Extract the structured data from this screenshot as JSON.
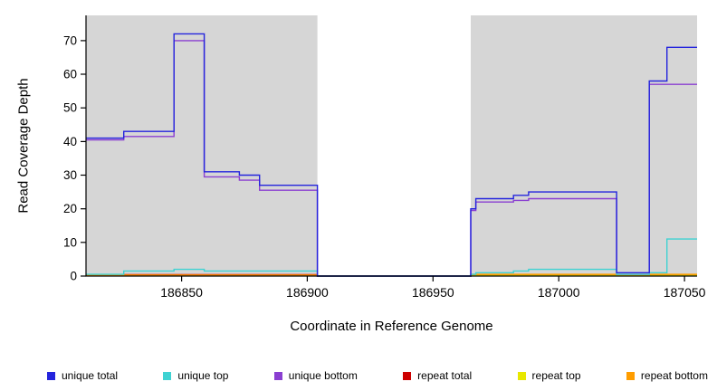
{
  "chart_data": {
    "type": "line",
    "title": "",
    "xlabel": "Coordinate in Reference Genome",
    "ylabel": "Read Coverage Depth",
    "x_ticks": [
      186850,
      186900,
      186950,
      187000,
      187050
    ],
    "y_ticks": [
      0,
      10,
      20,
      30,
      40,
      50,
      60,
      70
    ],
    "xlim": [
      186812,
      187055
    ],
    "ylim": [
      0,
      77.5
    ],
    "step_mode": "after",
    "grid": false,
    "panel_background": "#d6d6d6",
    "shaded_regions": [
      [
        186812,
        186904
      ],
      [
        186965,
        187055
      ]
    ],
    "series": [
      {
        "name": "repeat total",
        "color": "#cd0000",
        "points": [
          [
            186812,
            0.4
          ],
          [
            186904,
            0
          ],
          [
            186965,
            0.4
          ]
        ]
      },
      {
        "name": "repeat top",
        "color": "#e8e800",
        "points": [
          [
            186812,
            0.2
          ],
          [
            186904,
            0
          ],
          [
            186965,
            0.2
          ]
        ]
      },
      {
        "name": "repeat bottom",
        "color": "#ff9d00",
        "points": [
          [
            186812,
            0.3
          ],
          [
            186904,
            0
          ],
          [
            186965,
            0.5
          ]
        ]
      },
      {
        "name": "unique bottom",
        "color": "#8a3fd1",
        "points": [
          [
            186812,
            40.5
          ],
          [
            186827,
            41.5
          ],
          [
            186847,
            70
          ],
          [
            186859,
            29.5
          ],
          [
            186873,
            28.5
          ],
          [
            186881,
            25.5
          ],
          [
            186904,
            0
          ],
          [
            186965,
            19.5
          ],
          [
            186967,
            22
          ],
          [
            186982,
            22.5
          ],
          [
            186988,
            23
          ],
          [
            187023,
            0.5
          ],
          [
            187036,
            57
          ]
        ]
      },
      {
        "name": "unique top",
        "color": "#3fd2d2",
        "points": [
          [
            186812,
            0.5
          ],
          [
            186827,
            1.5
          ],
          [
            186847,
            2
          ],
          [
            186859,
            1.5
          ],
          [
            186881,
            1.5
          ],
          [
            186904,
            0
          ],
          [
            186965,
            0.5
          ],
          [
            186967,
            1
          ],
          [
            186982,
            1.5
          ],
          [
            186988,
            2
          ],
          [
            187023,
            0.5
          ],
          [
            187036,
            1
          ],
          [
            187043,
            11
          ]
        ]
      },
      {
        "name": "unique total",
        "color": "#2424dd",
        "points": [
          [
            186812,
            41
          ],
          [
            186827,
            43
          ],
          [
            186847,
            72
          ],
          [
            186859,
            31
          ],
          [
            186873,
            30
          ],
          [
            186881,
            27
          ],
          [
            186904,
            0
          ],
          [
            186965,
            20
          ],
          [
            186967,
            23
          ],
          [
            186982,
            24
          ],
          [
            186988,
            25
          ],
          [
            187023,
            1
          ],
          [
            187036,
            58
          ],
          [
            187043,
            68
          ]
        ]
      }
    ],
    "legend": {
      "position": "bottom",
      "items": [
        {
          "label": "unique total",
          "color": "#2424dd"
        },
        {
          "label": "unique top",
          "color": "#3fd2d2"
        },
        {
          "label": "unique bottom",
          "color": "#8a3fd1"
        },
        {
          "label": "repeat total",
          "color": "#cd0000"
        },
        {
          "label": "repeat top",
          "color": "#e8e800"
        },
        {
          "label": "repeat bottom",
          "color": "#ff9d00"
        }
      ]
    }
  }
}
